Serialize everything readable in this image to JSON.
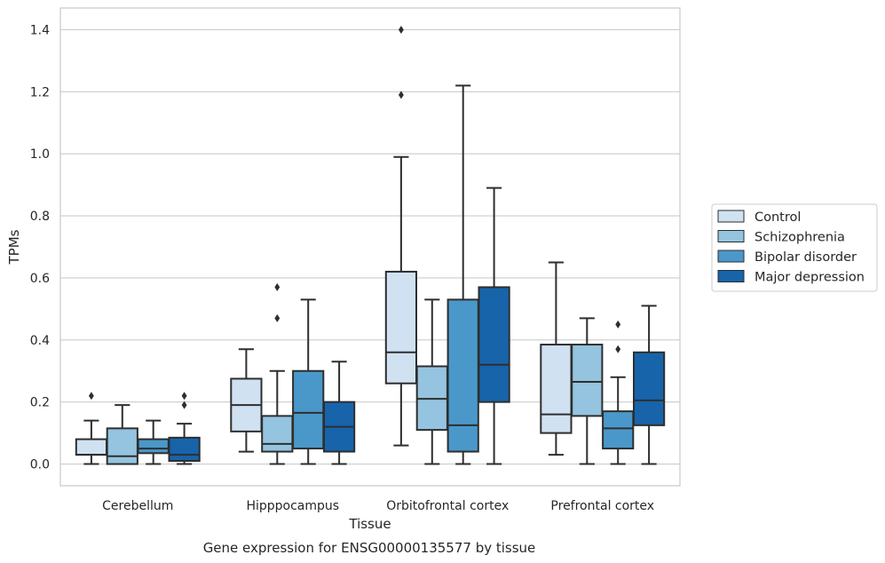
{
  "chart_data": {
    "type": "box",
    "caption": "Gene expression for ENSG00000135577 by tissue",
    "xlabel": "Tissue",
    "ylabel": "TPMs",
    "ylim": [
      -0.07,
      1.47
    ],
    "yticks": [
      "0.0",
      "0.2",
      "0.4",
      "0.6",
      "0.8",
      "1.0",
      "1.2",
      "1.4"
    ],
    "grid": "horizontal",
    "legend_position": "right",
    "categories": [
      "Cerebellum",
      "Hipppocampus",
      "Orbitofrontal cortex",
      "Prefrontal cortex"
    ],
    "series": [
      {
        "name": "Control",
        "color": "#d0e1f2",
        "boxes": [
          {
            "whislo": 0.0,
            "q1": 0.03,
            "med": 0.03,
            "q3": 0.08,
            "whishi": 0.14,
            "fliers": [
              0.22
            ]
          },
          {
            "whislo": 0.04,
            "q1": 0.105,
            "med": 0.19,
            "q3": 0.275,
            "whishi": 0.37,
            "fliers": []
          },
          {
            "whislo": 0.06,
            "q1": 0.26,
            "med": 0.36,
            "q3": 0.62,
            "whishi": 0.99,
            "fliers": [
              1.19,
              1.4
            ]
          },
          {
            "whislo": 0.03,
            "q1": 0.1,
            "med": 0.16,
            "q3": 0.385,
            "whishi": 0.65,
            "fliers": []
          }
        ]
      },
      {
        "name": "Schizophrenia",
        "color": "#94c4df",
        "boxes": [
          {
            "whislo": 0.0,
            "q1": 0.0,
            "med": 0.025,
            "q3": 0.115,
            "whishi": 0.19,
            "fliers": []
          },
          {
            "whislo": 0.0,
            "q1": 0.04,
            "med": 0.065,
            "q3": 0.155,
            "whishi": 0.3,
            "fliers": [
              0.47,
              0.57
            ]
          },
          {
            "whislo": 0.0,
            "q1": 0.11,
            "med": 0.21,
            "q3": 0.315,
            "whishi": 0.53,
            "fliers": []
          },
          {
            "whislo": 0.0,
            "q1": 0.155,
            "med": 0.265,
            "q3": 0.385,
            "whishi": 0.47,
            "fliers": []
          }
        ]
      },
      {
        "name": "Bipolar disorder",
        "color": "#4a98c9",
        "boxes": [
          {
            "whislo": 0.0,
            "q1": 0.035,
            "med": 0.05,
            "q3": 0.08,
            "whishi": 0.14,
            "fliers": []
          },
          {
            "whislo": 0.0,
            "q1": 0.05,
            "med": 0.165,
            "q3": 0.3,
            "whishi": 0.53,
            "fliers": []
          },
          {
            "whislo": 0.0,
            "q1": 0.04,
            "med": 0.125,
            "q3": 0.53,
            "whishi": 1.22,
            "fliers": []
          },
          {
            "whislo": 0.0,
            "q1": 0.05,
            "med": 0.115,
            "q3": 0.17,
            "whishi": 0.28,
            "fliers": [
              0.37,
              0.45
            ]
          }
        ]
      },
      {
        "name": "Major depression",
        "color": "#1764ab",
        "boxes": [
          {
            "whislo": 0.0,
            "q1": 0.01,
            "med": 0.03,
            "q3": 0.085,
            "whishi": 0.13,
            "fliers": [
              0.19,
              0.22
            ]
          },
          {
            "whislo": 0.0,
            "q1": 0.04,
            "med": 0.12,
            "q3": 0.2,
            "whishi": 0.33,
            "fliers": []
          },
          {
            "whislo": 0.0,
            "q1": 0.2,
            "med": 0.32,
            "q3": 0.57,
            "whishi": 0.89,
            "fliers": []
          },
          {
            "whislo": 0.0,
            "q1": 0.125,
            "med": 0.205,
            "q3": 0.36,
            "whishi": 0.51,
            "fliers": []
          }
        ]
      }
    ]
  }
}
